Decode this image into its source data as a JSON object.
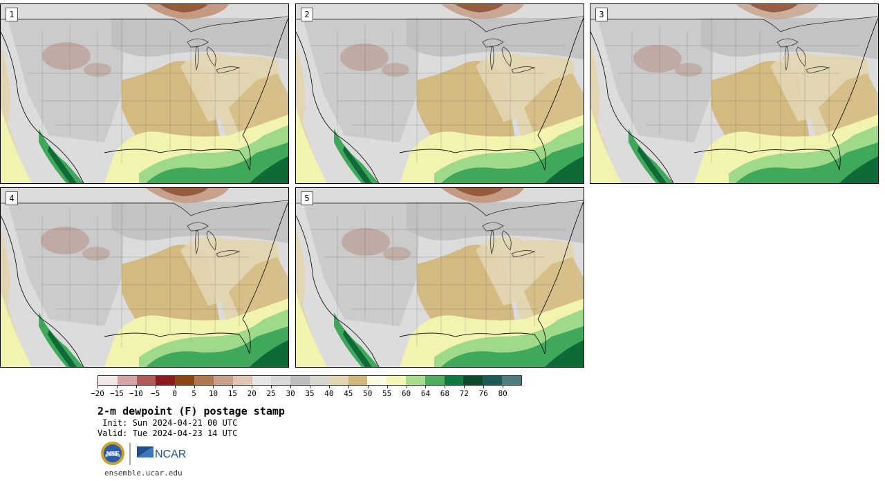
{
  "panels": [
    {
      "label": "1"
    },
    {
      "label": "2"
    },
    {
      "label": "3"
    },
    {
      "label": "4"
    },
    {
      "label": "5"
    }
  ],
  "colorbar": {
    "colors": [
      "#f3e8e8",
      "#d4a3a3",
      "#b05a5a",
      "#8b1a1a",
      "#8b4513",
      "#b07850",
      "#c9a088",
      "#e0c4b4",
      "#e6e6e6",
      "#d8d8d8",
      "#bdbdbd",
      "#d6d6cf",
      "#e2d6b2",
      "#d2b77a",
      "#fbfbe4",
      "#f5f5b8",
      "#a6dc8c",
      "#4cae5c",
      "#0f7a3e",
      "#0e4a2a",
      "#1d5a5a",
      "#4f7c7c"
    ],
    "ticks": [
      "-20",
      "-15",
      "-10",
      "-5",
      "0",
      "5",
      "10",
      "15",
      "20",
      "25",
      "30",
      "35",
      "40",
      "45",
      "50",
      "55",
      "60",
      "64",
      "68",
      "72",
      "76",
      "80"
    ]
  },
  "header": {
    "title": "2-m dewpoint (F) postage stamp",
    "init": " Init: Sun 2024-04-21 00 UTC",
    "valid": "Valid: Tue 2024-04-23 14 UTC"
  },
  "logos": {
    "nsf": "NSF",
    "ncar": "NCAR"
  },
  "footer": {
    "url": "ensemble.ucar.edu"
  },
  "palette": {
    "ocean_far": "#fbfbdc",
    "gulf_light": "#f3f3b0",
    "gulf_mid": "#9fd98a",
    "gulf_green": "#3fa85a",
    "deep_green": "#0e6b38",
    "tan": "#d2b77a",
    "light_tan": "#e2d6b2",
    "gray": "#bdbdbd",
    "light_gray": "#dcdcdc",
    "brown": "#a9705a",
    "canada_brown": "#c49a82"
  }
}
